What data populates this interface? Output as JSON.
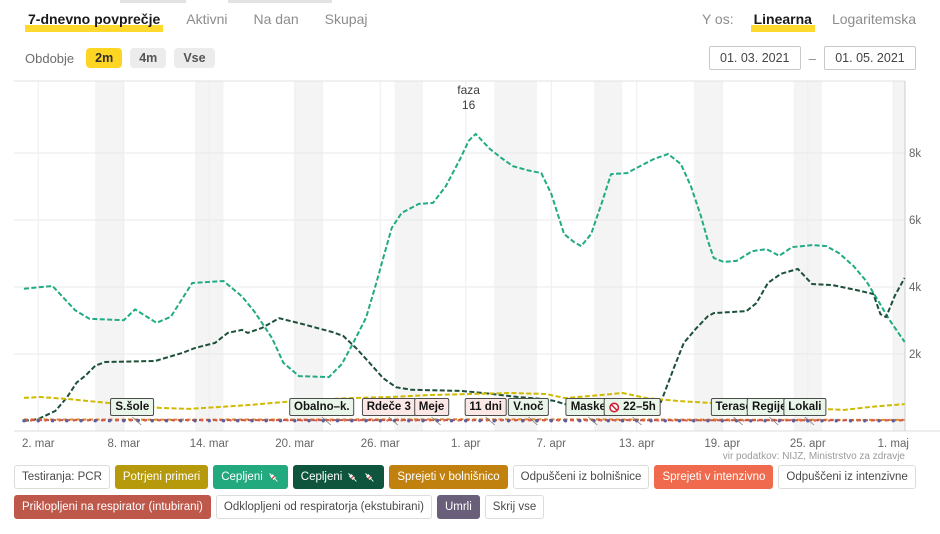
{
  "header": {
    "tabs": [
      {
        "label": "7-dnevno povprečje",
        "active": true
      },
      {
        "label": "Aktivni",
        "active": false
      },
      {
        "label": "Na dan",
        "active": false
      },
      {
        "label": "Skupaj",
        "active": false
      }
    ],
    "y_axis_label": "Y os:",
    "y_axis_options": [
      {
        "label": "Linearna",
        "active": true
      },
      {
        "label": "Logaritemska",
        "active": false
      }
    ]
  },
  "period": {
    "label": "Obdobje",
    "options": [
      {
        "label": "2m",
        "active": true
      },
      {
        "label": "4m",
        "active": false
      },
      {
        "label": "Vse",
        "active": false
      }
    ],
    "date_from": "01. 03. 2021",
    "separator": "–",
    "date_to": "01. 05. 2021"
  },
  "source_note": "vir podatkov: NIJZ, Ministrstvo za zdravje",
  "chart_data": {
    "type": "line",
    "y_scale": "linear",
    "x_axis": {
      "start_date": "1. mar 2021",
      "tick_days": [
        1,
        7,
        13,
        19,
        25,
        31,
        37,
        43,
        49,
        55,
        61
      ],
      "tick_labels": [
        "2. mar",
        "8. mar",
        "14. mar",
        "20. mar",
        "26. mar",
        "1. apr",
        "7. apr",
        "13. apr",
        "19. apr",
        "25. apr",
        "1. maj"
      ]
    },
    "y_axis": {
      "tick_values": [
        2000,
        4000,
        6000,
        8000
      ],
      "tick_labels": [
        "2k",
        "4k",
        "6k",
        "8k"
      ],
      "range": [
        0,
        10000
      ]
    },
    "weekend_bands_days": [
      [
        5,
        7
      ],
      [
        12,
        14
      ],
      [
        19,
        21
      ],
      [
        26,
        28
      ],
      [
        33,
        36
      ],
      [
        40,
        42
      ],
      [
        47,
        49
      ],
      [
        54,
        56
      ],
      [
        61,
        62.5
      ]
    ],
    "phase_annotation": {
      "name": "faza",
      "number": "16",
      "day": 31.2
    },
    "event_annotations": [
      {
        "label": "S.šole",
        "day": 7.6,
        "variant": "green"
      },
      {
        "label": "Obalno–k.",
        "day": 20.9,
        "variant": "green"
      },
      {
        "label": "Rdeče 3",
        "day": 25.6,
        "variant": "red"
      },
      {
        "label": "Meje",
        "day": 28.6,
        "variant": "red"
      },
      {
        "label": "11 dni",
        "day": 32.4,
        "variant": "red"
      },
      {
        "label": "V.noč",
        "day": 35.4,
        "variant": "green"
      },
      {
        "label": "Maske",
        "day": 39.6,
        "variant": "green"
      },
      {
        "label": "22–5h",
        "day": 42.7,
        "variant": "green",
        "icon": "no-entry"
      },
      {
        "label": "Terase",
        "day": 49.8,
        "variant": "green"
      },
      {
        "label": "Regije",
        "day": 52.3,
        "variant": "green"
      },
      {
        "label": "Lokali",
        "day": 54.8,
        "variant": "green"
      }
    ],
    "series": [
      {
        "name": "Cepljeni 💉",
        "color": "#21ab84",
        "dash": "5 2.4",
        "width": 2,
        "points": [
          [
            0,
            3950
          ],
          [
            2,
            4030
          ],
          [
            3.6,
            3300
          ],
          [
            4.6,
            3050
          ],
          [
            7,
            3010
          ],
          [
            7.8,
            3330
          ],
          [
            9.3,
            2930
          ],
          [
            10.3,
            3110
          ],
          [
            11.8,
            4120
          ],
          [
            14,
            4180
          ],
          [
            15.3,
            3720
          ],
          [
            16.2,
            3250
          ],
          [
            17.4,
            2480
          ],
          [
            18.2,
            1740
          ],
          [
            19.3,
            1340
          ],
          [
            21.4,
            1310
          ],
          [
            22.3,
            1700
          ],
          [
            23.1,
            2330
          ],
          [
            24,
            3080
          ],
          [
            24.7,
            4090
          ],
          [
            25.3,
            5000
          ],
          [
            25.8,
            5760
          ],
          [
            26.5,
            6210
          ],
          [
            27.7,
            6480
          ],
          [
            28.7,
            6510
          ],
          [
            29.6,
            7010
          ],
          [
            30.6,
            7820
          ],
          [
            31.2,
            8360
          ],
          [
            31.7,
            8570
          ],
          [
            32.7,
            8120
          ],
          [
            33.5,
            7850
          ],
          [
            34.3,
            7610
          ],
          [
            35.3,
            7490
          ],
          [
            36.3,
            7400
          ],
          [
            37,
            6780
          ],
          [
            37.9,
            5580
          ],
          [
            38.6,
            5340
          ],
          [
            39.1,
            5220
          ],
          [
            39.8,
            5580
          ],
          [
            40.5,
            6450
          ],
          [
            41.2,
            7370
          ],
          [
            42.3,
            7400
          ],
          [
            43.1,
            7580
          ],
          [
            44.2,
            7820
          ],
          [
            45.2,
            7970
          ],
          [
            46.1,
            7670
          ],
          [
            46.8,
            7010
          ],
          [
            47.5,
            6120
          ],
          [
            48,
            5370
          ],
          [
            48.4,
            4870
          ],
          [
            49.1,
            4750
          ],
          [
            50,
            4780
          ],
          [
            51.1,
            5070
          ],
          [
            52.1,
            5130
          ],
          [
            53,
            4930
          ],
          [
            53.9,
            5190
          ],
          [
            55.3,
            5250
          ],
          [
            56.3,
            5220
          ],
          [
            57.2,
            5010
          ],
          [
            58.2,
            4630
          ],
          [
            59.1,
            4180
          ],
          [
            60,
            3550
          ],
          [
            60.7,
            3040
          ],
          [
            61.8,
            2360
          ]
        ]
      },
      {
        "name": "Cepljeni 💉💉",
        "color": "#1c5038",
        "dash": "5 2.4",
        "width": 2,
        "points": [
          [
            0,
            0
          ],
          [
            1,
            60
          ],
          [
            2.2,
            300
          ],
          [
            3,
            700
          ],
          [
            3.7,
            1150
          ],
          [
            4.3,
            1350
          ],
          [
            5,
            1650
          ],
          [
            5.7,
            1760
          ],
          [
            9.2,
            1790
          ],
          [
            9.9,
            1880
          ],
          [
            11.1,
            2030
          ],
          [
            12,
            2180
          ],
          [
            13.4,
            2330
          ],
          [
            14.3,
            2630
          ],
          [
            15.3,
            2720
          ],
          [
            15.7,
            2630
          ],
          [
            16.7,
            2780
          ],
          [
            17.9,
            3070
          ],
          [
            19.5,
            2900
          ],
          [
            21.6,
            2660
          ],
          [
            22.4,
            2540
          ],
          [
            23.3,
            2180
          ],
          [
            24.2,
            1760
          ],
          [
            25.2,
            1280
          ],
          [
            26.1,
            1010
          ],
          [
            27.2,
            930
          ],
          [
            30.7,
            900
          ],
          [
            32.8,
            810
          ],
          [
            34.6,
            720
          ],
          [
            36.3,
            660
          ],
          [
            37.2,
            600
          ],
          [
            38.4,
            450
          ],
          [
            40.5,
            390
          ],
          [
            43.3,
            390
          ],
          [
            44.7,
            570
          ],
          [
            45.6,
            1580
          ],
          [
            46.3,
            2330
          ],
          [
            47.2,
            2780
          ],
          [
            48,
            3130
          ],
          [
            48.4,
            3220
          ],
          [
            50.7,
            3280
          ],
          [
            51.4,
            3520
          ],
          [
            52.2,
            4120
          ],
          [
            53.1,
            4390
          ],
          [
            54.3,
            4540
          ],
          [
            55.3,
            4090
          ],
          [
            56.7,
            4060
          ],
          [
            58.4,
            3910
          ],
          [
            59.6,
            3790
          ],
          [
            60.1,
            3190
          ],
          [
            60.5,
            3100
          ],
          [
            61.1,
            3730
          ],
          [
            61.8,
            4270
          ]
        ]
      },
      {
        "name": "Potrjeni primeri",
        "color": "#d0ba00",
        "dash": "5 2.4",
        "width": 2,
        "points": [
          [
            0,
            690
          ],
          [
            1.1,
            715
          ],
          [
            3.2,
            655
          ],
          [
            5.3,
            565
          ],
          [
            7.4,
            480
          ],
          [
            9.5,
            390
          ],
          [
            11.6,
            360
          ],
          [
            13.8,
            420
          ],
          [
            15.9,
            480
          ],
          [
            17.3,
            535
          ],
          [
            20,
            625
          ],
          [
            22.9,
            685
          ],
          [
            25.7,
            715
          ],
          [
            28.5,
            775
          ],
          [
            31.3,
            805
          ],
          [
            34.1,
            835
          ],
          [
            36.6,
            805
          ],
          [
            38,
            685
          ],
          [
            40.5,
            775
          ],
          [
            42,
            835
          ],
          [
            43.7,
            685
          ],
          [
            46,
            595
          ],
          [
            48.4,
            535
          ],
          [
            51.6,
            505
          ],
          [
            53.8,
            450
          ],
          [
            55.9,
            360
          ],
          [
            57.6,
            330
          ],
          [
            59.4,
            420
          ],
          [
            61.8,
            505
          ]
        ]
      },
      {
        "name": "Sprejeti v bolnišnico",
        "color": "#dd8b33",
        "dash": "4 2.5",
        "width": 2,
        "points": [
          [
            0,
            48
          ],
          [
            10,
            42
          ],
          [
            20,
            45
          ],
          [
            30,
            52
          ],
          [
            40,
            48
          ],
          [
            50,
            40
          ],
          [
            61.8,
            33
          ]
        ]
      },
      {
        "name": "Priklopljeni na respirator (intubirani)",
        "color": "#c3584c",
        "dash": "4 3",
        "width": 2,
        "points": [
          [
            0,
            28
          ],
          [
            15,
            26
          ],
          [
            30,
            28
          ],
          [
            45,
            25
          ],
          [
            61.8,
            21
          ]
        ]
      },
      {
        "name": "Sprejeti v intenzivno",
        "color": "#e0614d",
        "marker": "dot",
        "dot_radius": 1.2,
        "dot_offset_days": 0.5,
        "points": [
          [
            0,
            15
          ],
          [
            30,
            16
          ],
          [
            61.8,
            12
          ]
        ]
      },
      {
        "name": "Umrli",
        "color": "#5c5f9f",
        "marker": "dot",
        "dot_radius": 1.7,
        "points": [
          [
            0,
            9
          ],
          [
            30,
            8
          ],
          [
            61.8,
            6
          ]
        ]
      }
    ]
  },
  "legend": {
    "rows": [
      [
        {
          "label": "Testiranja: PCR",
          "bg": "#ffffff",
          "fg": "#4a4a4a",
          "border": "#dcdcdc"
        },
        {
          "label": "Potrjeni primeri",
          "bg": "#b69a0b",
          "fg": "#ffffff"
        },
        {
          "label": "Cepljeni",
          "syringes": 1,
          "bg": "#22a97d",
          "fg": "#ffffff"
        },
        {
          "label": "Cepljeni",
          "syringes": 2,
          "bg": "#0f553e",
          "fg": "#ffffff"
        },
        {
          "label": "Sprejeti v bolnišnico",
          "bg": "#c1810f",
          "fg": "#ffffff"
        },
        {
          "label": "Odpuščeni iz bolnišnice",
          "bg": "#ffffff",
          "fg": "#4a4a4a",
          "border": "#dcdcdc"
        },
        {
          "label": "Sprejeti v intenzivno",
          "bg": "#f06b4e",
          "fg": "#ffffff"
        },
        {
          "label": "Odpuščeni iz intenzivne",
          "bg": "#ffffff",
          "fg": "#4a4a4a",
          "border": "#dcdcdc"
        }
      ],
      [
        {
          "label": "Priklopljeni na respirator (intubirani)",
          "bg": "#bd584b",
          "fg": "#ffffff"
        },
        {
          "label": "Odklopljeni od respiratorja (ekstubirani)",
          "bg": "#ffffff",
          "fg": "#4a4a4a",
          "border": "#dcdcdc"
        },
        {
          "label": "Umrli",
          "bg": "#6a5f7a",
          "fg": "#ffffff"
        },
        {
          "label": "Skrij vse",
          "bg": "#ffffff",
          "fg": "#4a4a4a",
          "border": "#dcdcdc"
        }
      ]
    ]
  }
}
